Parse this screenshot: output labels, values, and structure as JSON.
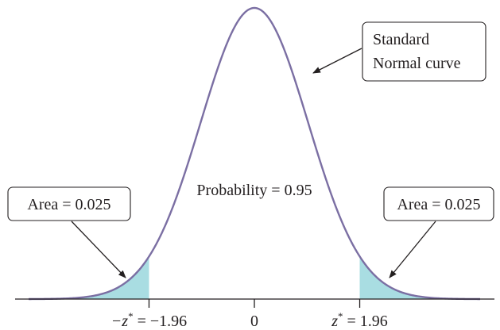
{
  "chart_data": {
    "type": "area",
    "distribution": "standard normal",
    "xlim": [
      -4.2,
      4.2
    ],
    "central_region": {
      "lower": -1.96,
      "upper": 1.96,
      "probability": 0.95
    },
    "tail_areas": [
      {
        "from": -4.2,
        "to": -1.96,
        "area": 0.025
      },
      {
        "from": 1.96,
        "to": 4.2,
        "area": 0.025
      }
    ],
    "x_ticks": [
      {
        "x": -1.96,
        "label_prefix": "−z",
        "label_sup": "*",
        "label_suffix": " = −1.96"
      },
      {
        "x": 0,
        "label_prefix": "0",
        "label_sup": "",
        "label_suffix": ""
      },
      {
        "x": 1.96,
        "label_prefix": "z",
        "label_sup": "*",
        "label_suffix": " = 1.96"
      }
    ],
    "annotations": {
      "curve_label_line1": "Standard",
      "curve_label_line2": "Normal curve",
      "center_label": "Probability = 0.95",
      "left_tail_label": "Area = 0.025",
      "right_tail_label": "Area = 0.025"
    },
    "colors": {
      "curve": "#7b6fa3",
      "tail_fill": "#a9dde2",
      "axis": "#231f20",
      "text": "#231f20"
    }
  }
}
